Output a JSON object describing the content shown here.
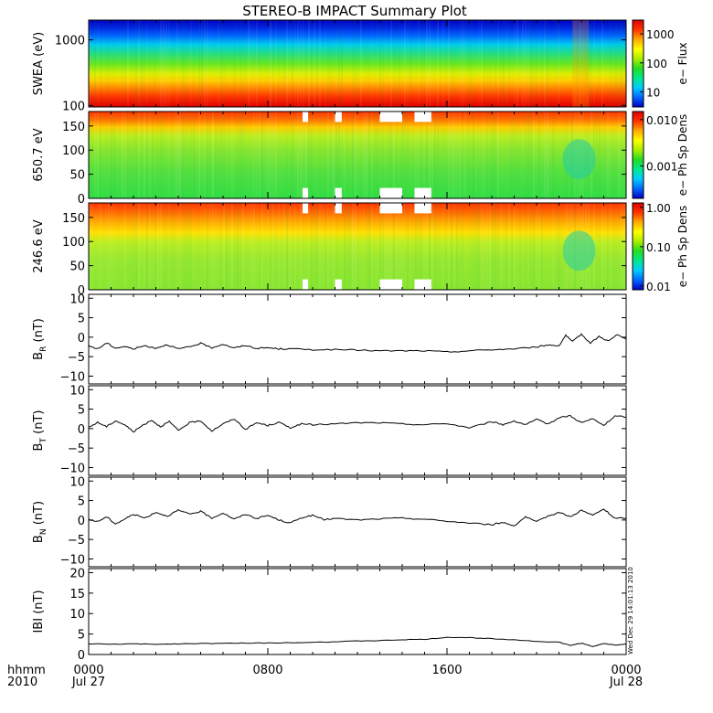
{
  "title": "STEREO-B IMPACT Summary Plot",
  "time_axis": {
    "prefix_top": "hhmm",
    "prefix_bottom": "2010",
    "ticks": [
      {
        "label": "0000",
        "date": "Jul 27",
        "hour": 0
      },
      {
        "label": "0800",
        "date": "",
        "hour": 8
      },
      {
        "label": "1600",
        "date": "",
        "hour": 16
      },
      {
        "label": "0000",
        "date": "Jul 28",
        "hour": 24
      }
    ],
    "range_hours": [
      0,
      24
    ]
  },
  "timestamp": "Wed Dec 29 14:01:13 2010",
  "colors": {
    "colormap": [
      "#0000c8",
      "#0066ff",
      "#00ccff",
      "#00e890",
      "#22dd22",
      "#aaee00",
      "#ffff00",
      "#ffaa00",
      "#ff3300",
      "#dd0000"
    ],
    "line": "#000000"
  },
  "chart_data": [
    {
      "type": "heatmap",
      "id": "swea",
      "ylabel": "SWEA (eV)",
      "yscale": "log",
      "ylim": [
        95,
        2000
      ],
      "yticks": [
        {
          "v": 1000,
          "t": "1000"
        },
        {
          "v": 100,
          "t": "100"
        }
      ],
      "colorbar": {
        "label": "e− Flux",
        "scale": "log",
        "range": [
          3,
          3000
        ],
        "ticks": [
          {
            "v": 1000,
            "t": "1000"
          },
          {
            "v": 100,
            "t": "100"
          },
          {
            "v": 10,
            "t": "10"
          }
        ]
      },
      "gaps": []
    },
    {
      "type": "heatmap",
      "id": "pad650",
      "ylabel": "650.7 eV",
      "ylim": [
        0,
        180
      ],
      "yticks": [
        {
          "v": 150,
          "t": "150"
        },
        {
          "v": 100,
          "t": "100"
        },
        {
          "v": 50,
          "t": "50"
        },
        {
          "v": 0,
          "t": "0"
        }
      ],
      "colorbar": {
        "label": "e− Ph Sp Dens",
        "scale": "log",
        "range": [
          0.0002,
          0.015
        ],
        "ticks": [
          {
            "v": 0.01,
            "t": "0.010"
          },
          {
            "v": 0.001,
            "t": "0.001"
          }
        ]
      },
      "gaps": [
        [
          9.55,
          9.8
        ],
        [
          11.0,
          11.3
        ],
        [
          13.0,
          14.0
        ],
        [
          14.55,
          15.3
        ]
      ]
    },
    {
      "type": "heatmap",
      "id": "pad246",
      "ylabel": "246.6 eV",
      "ylim": [
        0,
        180
      ],
      "yticks": [
        {
          "v": 150,
          "t": "150"
        },
        {
          "v": 100,
          "t": "100"
        },
        {
          "v": 50,
          "t": "50"
        },
        {
          "v": 0,
          "t": "0"
        }
      ],
      "colorbar": {
        "label": "e− Ph Sp Dens",
        "scale": "log",
        "range": [
          0.008,
          1.3
        ],
        "ticks": [
          {
            "v": 1.0,
            "t": "1.00"
          },
          {
            "v": 0.1,
            "t": "0.10"
          },
          {
            "v": 0.01,
            "t": "0.01"
          }
        ]
      },
      "gaps": [
        [
          9.55,
          9.8
        ],
        [
          11.0,
          11.3
        ],
        [
          13.0,
          14.0
        ],
        [
          14.55,
          15.3
        ]
      ]
    },
    {
      "type": "line",
      "id": "br",
      "ylabel": "B",
      "ysub": "R",
      "yunit": " (nT)",
      "ylim": [
        -12,
        11
      ],
      "yticks": [
        {
          "v": 10,
          "t": "10"
        },
        {
          "v": 5,
          "t": "5"
        },
        {
          "v": 0,
          "t": "0"
        },
        {
          "v": -5,
          "t": "−5"
        },
        {
          "v": -10,
          "t": "−10"
        }
      ],
      "x": [
        0,
        0.4,
        0.8,
        1.2,
        1.6,
        2,
        2.5,
        3,
        3.5,
        4,
        4.5,
        5,
        5.5,
        6,
        6.5,
        7,
        7.5,
        8,
        8.5,
        9,
        10,
        11,
        12,
        13,
        14,
        15,
        16,
        17,
        18,
        19,
        20,
        20.5,
        21,
        21.3,
        21.6,
        22,
        22.4,
        22.8,
        23.2,
        23.6,
        24
      ],
      "y": [
        -2.2,
        -3.0,
        -1.5,
        -2.8,
        -2.4,
        -3.0,
        -2.2,
        -2.8,
        -1.9,
        -3.0,
        -2.5,
        -1.6,
        -2.7,
        -1.8,
        -2.8,
        -2.1,
        -2.9,
        -2.7,
        -3.0,
        -3.0,
        -3.2,
        -3.2,
        -3.3,
        -3.5,
        -3.5,
        -3.5,
        -3.8,
        -3.5,
        -3.2,
        -3.0,
        -2.5,
        -2.0,
        -2.2,
        0.5,
        -1.2,
        0.8,
        -1.5,
        0.2,
        -1.0,
        0.6,
        -0.5
      ]
    },
    {
      "type": "line",
      "id": "bt",
      "ylabel": "B",
      "ysub": "T",
      "yunit": " (nT)",
      "ylim": [
        -12,
        11
      ],
      "yticks": [
        {
          "v": 10,
          "t": "10"
        },
        {
          "v": 5,
          "t": "5"
        },
        {
          "v": 0,
          "t": "0"
        },
        {
          "v": -5,
          "t": "−5"
        },
        {
          "v": -10,
          "t": "−10"
        }
      ],
      "x": [
        0,
        0.4,
        0.8,
        1.2,
        1.6,
        2,
        2.4,
        2.8,
        3.2,
        3.6,
        4,
        4.5,
        5,
        5.5,
        6,
        6.5,
        7,
        7.5,
        8,
        8.5,
        9,
        9.5,
        10,
        11,
        12,
        13,
        14,
        15,
        16,
        17,
        18,
        18.5,
        19,
        19.5,
        20,
        20.5,
        21,
        21.5,
        22,
        22.5,
        23,
        23.5,
        24
      ],
      "y": [
        0.3,
        1.6,
        0.5,
        2.0,
        1.0,
        -0.8,
        0.8,
        2.2,
        0.5,
        1.8,
        -0.5,
        1.5,
        2.0,
        -0.6,
        1.2,
        2.5,
        -0.2,
        1.5,
        0.8,
        1.6,
        0.2,
        1.2,
        1.0,
        1.2,
        1.5,
        1.5,
        1.2,
        1.0,
        1.3,
        0.2,
        1.8,
        1.0,
        2.0,
        1.0,
        2.3,
        1.2,
        2.8,
        3.3,
        1.5,
        2.5,
        0.8,
        3.2,
        3.0
      ]
    },
    {
      "type": "line",
      "id": "bn",
      "ylabel": "B",
      "ysub": "N",
      "yunit": " (nT)",
      "ylim": [
        -12,
        11
      ],
      "yticks": [
        {
          "v": 10,
          "t": "10"
        },
        {
          "v": 5,
          "t": "5"
        },
        {
          "v": 0,
          "t": "0"
        },
        {
          "v": -5,
          "t": "−5"
        },
        {
          "v": -10,
          "t": "−10"
        }
      ],
      "x": [
        0,
        0.4,
        0.8,
        1.2,
        1.6,
        2,
        2.5,
        3,
        3.5,
        4,
        4.5,
        5,
        5.5,
        6,
        6.5,
        7,
        7.5,
        8,
        8.5,
        9,
        9.5,
        10,
        10.5,
        11,
        12,
        13,
        14,
        15,
        16,
        17,
        18,
        18.5,
        19,
        19.5,
        20,
        20.5,
        21,
        21.5,
        22,
        22.5,
        23,
        23.5,
        24
      ],
      "y": [
        0.1,
        -0.4,
        0.8,
        -1.0,
        0.2,
        1.5,
        0.5,
        2.0,
        1.0,
        2.5,
        1.5,
        2.2,
        0.5,
        1.8,
        0.2,
        1.5,
        0.4,
        1.2,
        0.0,
        -0.8,
        0.6,
        1.2,
        0.1,
        0.4,
        0.0,
        0.3,
        0.5,
        0.2,
        -0.3,
        -0.8,
        -1.2,
        -0.6,
        -1.5,
        0.8,
        -0.5,
        1.0,
        2.0,
        0.8,
        2.5,
        1.2,
        2.8,
        0.4,
        0.5
      ]
    },
    {
      "type": "line",
      "id": "bmag",
      "ylabel": "IBI",
      "ysub": "",
      "yunit": " (nT)",
      "ylim": [
        0,
        21
      ],
      "yticks": [
        {
          "v": 20,
          "t": "20"
        },
        {
          "v": 15,
          "t": "15"
        },
        {
          "v": 10,
          "t": "10"
        },
        {
          "v": 5,
          "t": "5"
        },
        {
          "v": 0,
          "t": "0"
        }
      ],
      "x": [
        0,
        1,
        2,
        3,
        4,
        5,
        6,
        7,
        8,
        9,
        10,
        11,
        12,
        13,
        14,
        15,
        16,
        17,
        18,
        19,
        20,
        21,
        21.5,
        22,
        22.5,
        23,
        23.5,
        24
      ],
      "y": [
        2.6,
        2.5,
        2.6,
        2.5,
        2.6,
        2.7,
        2.7,
        2.8,
        2.8,
        2.9,
        3.0,
        3.1,
        3.3,
        3.4,
        3.6,
        3.7,
        4.2,
        4.1,
        3.9,
        3.6,
        3.2,
        3.0,
        2.2,
        2.8,
        1.9,
        2.7,
        2.3,
        2.6
      ]
    }
  ]
}
